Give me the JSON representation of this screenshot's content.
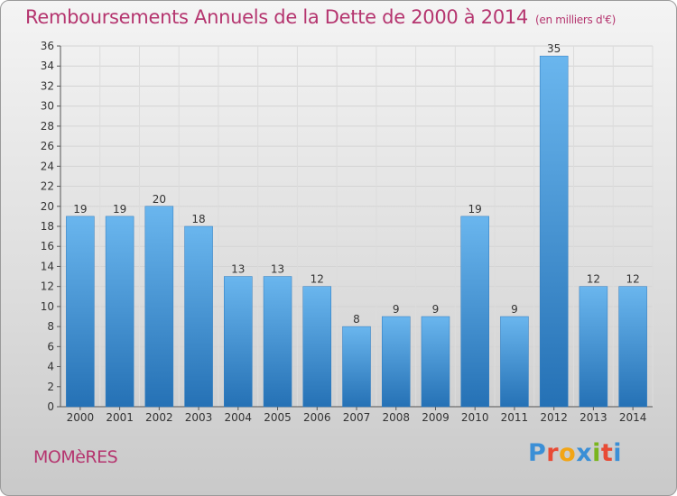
{
  "title": "Remboursements Annuels de la Dette de 2000 à 2014",
  "subtitle": "(en milliers d'€)",
  "commune": "MOMèRES",
  "logo": {
    "text": "Proxiti",
    "colors": [
      "#3b8fd6",
      "#e84b35",
      "#f2a516",
      "#3b8fd6",
      "#7ab51d",
      "#e84b35",
      "#3b8fd6"
    ]
  },
  "colors": {
    "bar_light": "#6ab6ee",
    "bar_dark": "#2571b5",
    "accent": "#b5356f",
    "label": "#333333",
    "axis": "#555555"
  },
  "chart_data": {
    "type": "bar",
    "categories": [
      "2000",
      "2001",
      "2002",
      "2003",
      "2004",
      "2005",
      "2006",
      "2007",
      "2008",
      "2009",
      "2010",
      "2011",
      "2012",
      "2013",
      "2014"
    ],
    "values": [
      19,
      19,
      20,
      18,
      13,
      13,
      12,
      8,
      9,
      9,
      19,
      9,
      35,
      12,
      12
    ],
    "data_labels": [
      "19",
      "19",
      "20",
      "18",
      "13",
      "13",
      "12",
      "8",
      "9",
      "9",
      "19",
      "9",
      "35",
      "12",
      "12"
    ],
    "title": "Remboursements Annuels de la Dette de 2000 à 2014",
    "xlabel": "",
    "ylabel": "",
    "ylim": [
      0,
      36
    ],
    "yticks": [
      0,
      2,
      4,
      6,
      8,
      10,
      12,
      14,
      16,
      18,
      20,
      22,
      24,
      26,
      28,
      30,
      32,
      34,
      36
    ],
    "ytick_labels": [
      "0",
      "2",
      "4",
      "6",
      "8",
      "10",
      "12",
      "14",
      "16",
      "18",
      "20",
      "22",
      "24",
      "26",
      "28",
      "30",
      "32",
      "34",
      "36"
    ],
    "grid": true,
    "legend": "none"
  }
}
